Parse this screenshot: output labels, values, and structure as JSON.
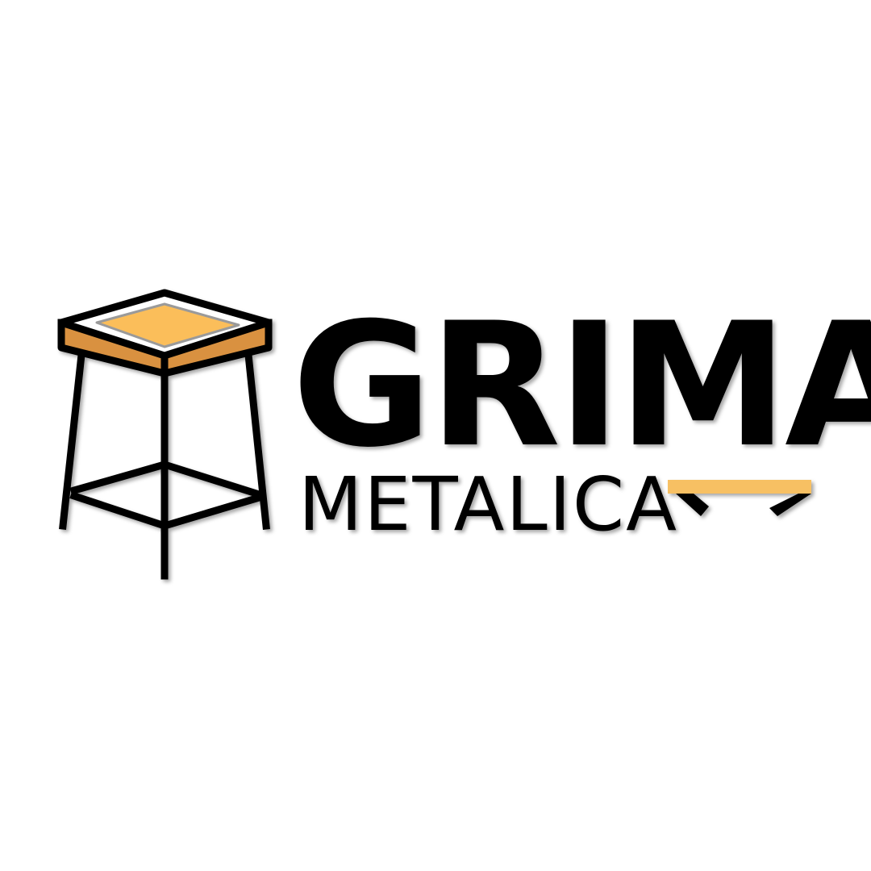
{
  "brand": {
    "name_primary": "GRIMA",
    "name_secondary": "METALICA",
    "colors": {
      "ink": "#000000",
      "seat_top": "#FBBE5A",
      "seat_side": "#D9913F",
      "accent_bar": "#F7C063",
      "background": "#FFFFFF"
    }
  },
  "icons": [
    "stool-icon",
    "bench-icon"
  ]
}
